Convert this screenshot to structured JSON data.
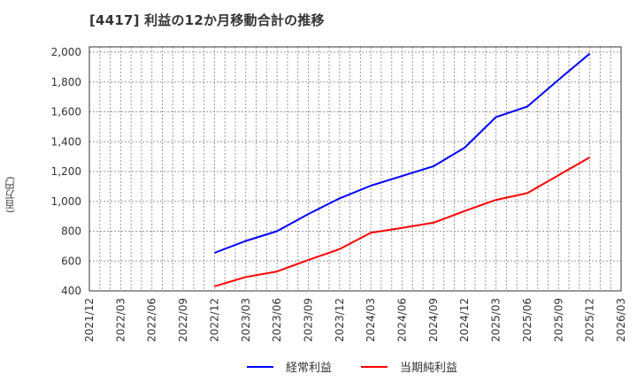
{
  "header": {
    "title": "[4417]  利益の12か月移動合計の推移"
  },
  "colors": {
    "series_1": "#0000ff",
    "series_2": "#ff0000",
    "grid": "#999999",
    "frame": "#333333"
  },
  "chart_data": {
    "type": "line",
    "title": "[4417]  利益の12か月移動合計の推移",
    "xlabel": "",
    "ylabel": "(百万円)",
    "ylim": [
      400,
      2000
    ],
    "yticks": [
      400,
      600,
      800,
      1000,
      1200,
      1400,
      1600,
      1800,
      2000
    ],
    "ytick_labels": [
      "400",
      "600",
      "800",
      "1,000",
      "1,200",
      "1,400",
      "1,600",
      "1,800",
      "2,000"
    ],
    "xticks": [
      "2021/12",
      "2022/03",
      "2022/06",
      "2022/09",
      "2022/12",
      "2023/03",
      "2023/06",
      "2023/09",
      "2023/12",
      "2024/03",
      "2024/06",
      "2024/09",
      "2024/12",
      "2025/03",
      "2025/06",
      "2025/09",
      "2025/12",
      "2026/03"
    ],
    "grid": true,
    "legend_position": "bottom",
    "x": [
      "2022/12",
      "2023/03",
      "2023/06",
      "2023/09",
      "2023/12",
      "2024/03",
      "2024/06",
      "2024/09",
      "2024/12",
      "2025/03",
      "2025/06",
      "2025/09",
      "2025/12"
    ],
    "series": [
      {
        "name": "経常利益",
        "color": "#0000ff",
        "values": [
          655,
          735,
          800,
          915,
          1020,
          1105,
          1170,
          1235,
          1360,
          1565,
          1635,
          1815,
          1990
        ]
      },
      {
        "name": "当期純利益",
        "color": "#ff0000",
        "values": [
          430,
          493,
          530,
          607,
          680,
          790,
          822,
          857,
          935,
          1010,
          1055,
          1175,
          1295
        ]
      }
    ]
  },
  "legend": {
    "items": [
      {
        "label": "経常利益",
        "color": "#0000ff"
      },
      {
        "label": "当期純利益",
        "color": "#ff0000"
      }
    ]
  }
}
